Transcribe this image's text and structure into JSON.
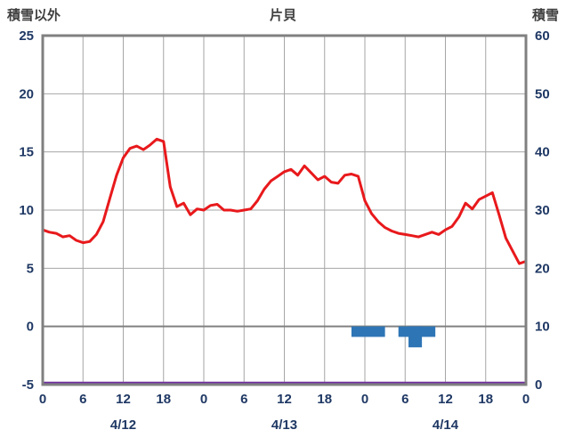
{
  "page": {
    "title": "片貝"
  },
  "chart_data": {
    "type": "line",
    "title": "片貝",
    "left_axis": {
      "label": "積雪以外",
      "min": -5,
      "max": 25,
      "ticks": [
        "25",
        "20",
        "15",
        "10",
        "5",
        "0",
        "-5"
      ],
      "tick_values": [
        25,
        20,
        15,
        10,
        5,
        0,
        -5
      ]
    },
    "right_axis": {
      "label": "積雪",
      "min": 0,
      "max": 60,
      "ticks": [
        "60",
        "50",
        "40",
        "30",
        "20",
        "10",
        "0"
      ],
      "tick_values": [
        60,
        50,
        40,
        30,
        20,
        10,
        0
      ]
    },
    "x_axis": {
      "min": 0,
      "max": 72,
      "tick_step": 6,
      "tick_labels": [
        "0",
        "6",
        "12",
        "18",
        "0",
        "6",
        "12",
        "18",
        "0",
        "6",
        "12",
        "18",
        "0"
      ],
      "date_labels": [
        {
          "label": "4/12",
          "hour": 12
        },
        {
          "label": "4/13",
          "hour": 36
        },
        {
          "label": "4/14",
          "hour": 60
        }
      ]
    },
    "series": [
      {
        "name": "main-line",
        "type": "line",
        "axis": "left",
        "color": "#e8191c",
        "x_start": 0,
        "x_step": 1,
        "values": [
          8.3,
          8.1,
          8.0,
          7.7,
          7.8,
          7.4,
          7.2,
          7.3,
          7.9,
          9.0,
          11.0,
          13.0,
          14.5,
          15.3,
          15.5,
          15.2,
          15.6,
          16.1,
          15.9,
          12.0,
          10.3,
          10.6,
          9.6,
          10.1,
          10.0,
          10.4,
          10.5,
          10.0,
          10.0,
          9.9,
          10.0,
          10.1,
          10.8,
          11.8,
          12.5,
          12.9,
          13.3,
          13.5,
          13.0,
          13.8,
          13.2,
          12.6,
          12.9,
          12.4,
          12.3,
          13.0,
          13.1,
          12.9,
          10.8,
          9.7,
          9.0,
          8.5,
          8.2,
          8.0,
          7.9,
          7.8,
          7.7,
          7.9,
          8.1,
          7.9,
          8.3,
          8.6,
          9.4,
          10.6,
          10.1,
          10.9,
          11.2,
          11.5,
          9.6,
          7.6,
          6.5,
          5.4,
          5.6
        ]
      },
      {
        "name": "bars",
        "type": "bar",
        "axis": "left",
        "color": "#2e75b6",
        "segments": [
          {
            "from": 46,
            "to": 51,
            "value": -0.9
          },
          {
            "from": 53,
            "to": 58.5,
            "value": -0.9
          },
          {
            "from": 54.5,
            "to": 56.5,
            "value": -1.8
          }
        ]
      },
      {
        "name": "baseline",
        "type": "constant-line",
        "axis": "right",
        "color": "#7030a0",
        "constant": 0
      }
    ],
    "colors": {
      "grid": "#a6a6a6",
      "border": "#808080",
      "zero_line": "#808080",
      "axis_text": "#1f3864",
      "title_text": "#3f3f3f"
    },
    "grid": true,
    "legend": "none"
  }
}
